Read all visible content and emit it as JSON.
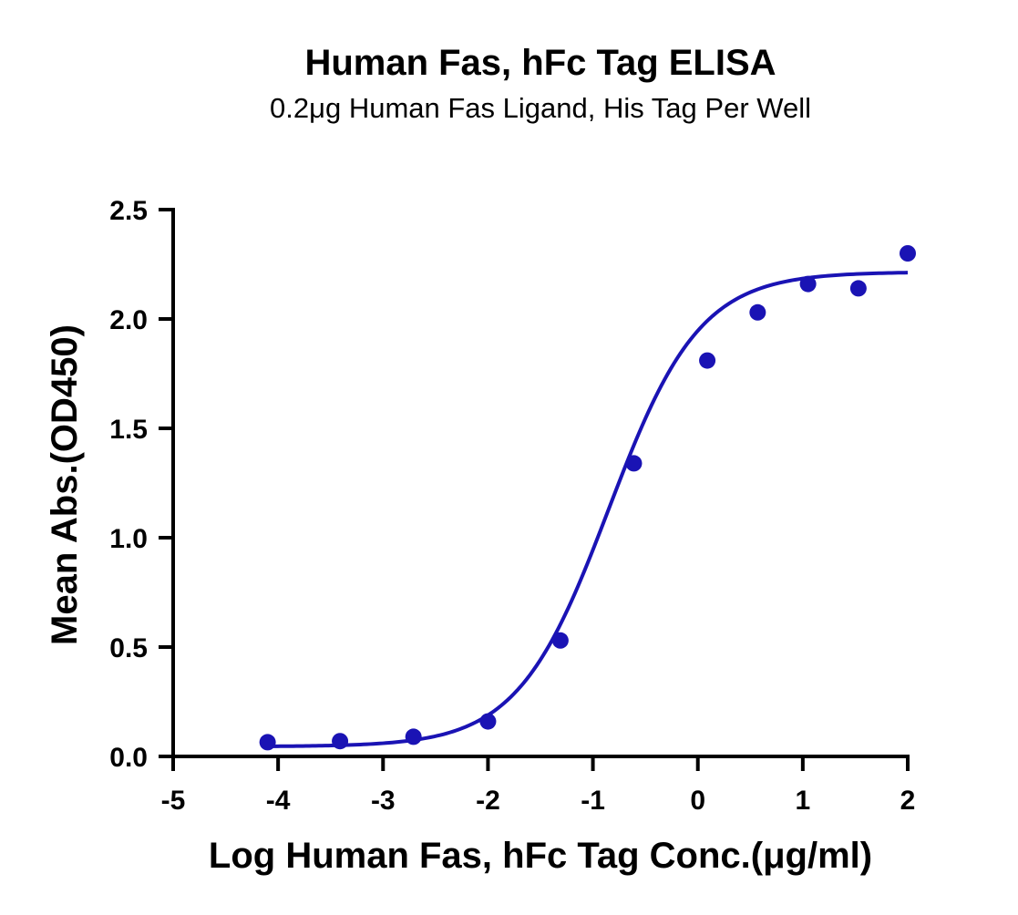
{
  "chart_data": {
    "type": "scatter",
    "title": "Human Fas, hFc Tag ELISA",
    "subtitle": "0.2μg Human Fas Ligand, His Tag Per Well",
    "xlabel": "Log Human Fas, hFc Tag Conc.(μg/ml)",
    "ylabel": "Mean Abs.(OD450)",
    "xlim": [
      -5,
      2
    ],
    "ylim": [
      0,
      2.5
    ],
    "xticks": [
      -5,
      -4,
      -3,
      -2,
      -1,
      0,
      1,
      2
    ],
    "yticks": [
      0,
      0.5,
      1,
      1.5,
      2,
      2.5
    ],
    "xtick_labels": [
      "-5",
      "-4",
      "-3",
      "-2",
      "-1",
      "0",
      "1",
      "2"
    ],
    "ytick_labels": [
      "0.0",
      "0.5",
      "1.0",
      "1.5",
      "2.0",
      "2.5"
    ],
    "grid": false,
    "series": [
      {
        "color": "#1a13b4",
        "x": [
          -4.1,
          -3.41,
          -2.71,
          -2.0,
          -1.31,
          -0.61,
          0.09,
          0.57,
          1.05,
          1.53,
          2.0
        ],
        "y": [
          0.065,
          0.07,
          0.09,
          0.16,
          0.53,
          1.34,
          1.81,
          2.03,
          2.16,
          2.14,
          2.3
        ]
      }
    ],
    "fit_curve": {
      "model": "four-parameter logistic",
      "color": "#1a13b4",
      "bottom": 0.045,
      "top": 2.215,
      "log_ec50": -0.85,
      "hill_slope": 1.0,
      "x_range": [
        -4.1,
        2.0
      ]
    }
  }
}
